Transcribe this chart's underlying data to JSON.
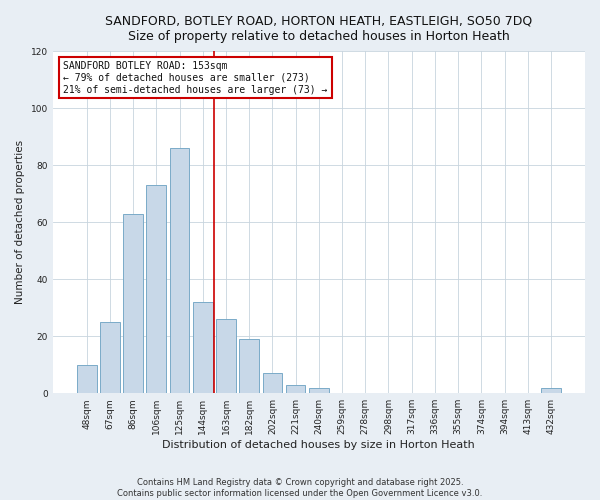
{
  "title": "SANDFORD, BOTLEY ROAD, HORTON HEATH, EASTLEIGH, SO50 7DQ",
  "subtitle": "Size of property relative to detached houses in Horton Heath",
  "xlabel": "Distribution of detached houses by size in Horton Heath",
  "ylabel": "Number of detached properties",
  "bar_labels": [
    "48sqm",
    "67sqm",
    "86sqm",
    "106sqm",
    "125sqm",
    "144sqm",
    "163sqm",
    "182sqm",
    "202sqm",
    "221sqm",
    "240sqm",
    "259sqm",
    "278sqm",
    "298sqm",
    "317sqm",
    "336sqm",
    "355sqm",
    "374sqm",
    "394sqm",
    "413sqm",
    "432sqm"
  ],
  "bar_values": [
    10,
    25,
    63,
    73,
    86,
    32,
    26,
    19,
    7,
    3,
    2,
    0,
    0,
    0,
    0,
    0,
    0,
    0,
    0,
    0,
    2
  ],
  "bar_color": "#c8d8e8",
  "bar_edge_color": "#7aaac8",
  "vline_x_idx": 5,
  "vline_color": "#cc0000",
  "ylim": [
    0,
    120
  ],
  "yticks": [
    0,
    20,
    40,
    60,
    80,
    100,
    120
  ],
  "annotation_title": "SANDFORD BOTLEY ROAD: 153sqm",
  "annotation_line1": "← 79% of detached houses are smaller (273)",
  "annotation_line2": "21% of semi-detached houses are larger (73) →",
  "annotation_box_color": "#ffffff",
  "annotation_box_edge": "#cc0000",
  "footer1": "Contains HM Land Registry data © Crown copyright and database right 2025.",
  "footer2": "Contains public sector information licensed under the Open Government Licence v3.0.",
  "background_color": "#e8eef4",
  "plot_bg_color": "#ffffff",
  "grid_color": "#c8d4de"
}
